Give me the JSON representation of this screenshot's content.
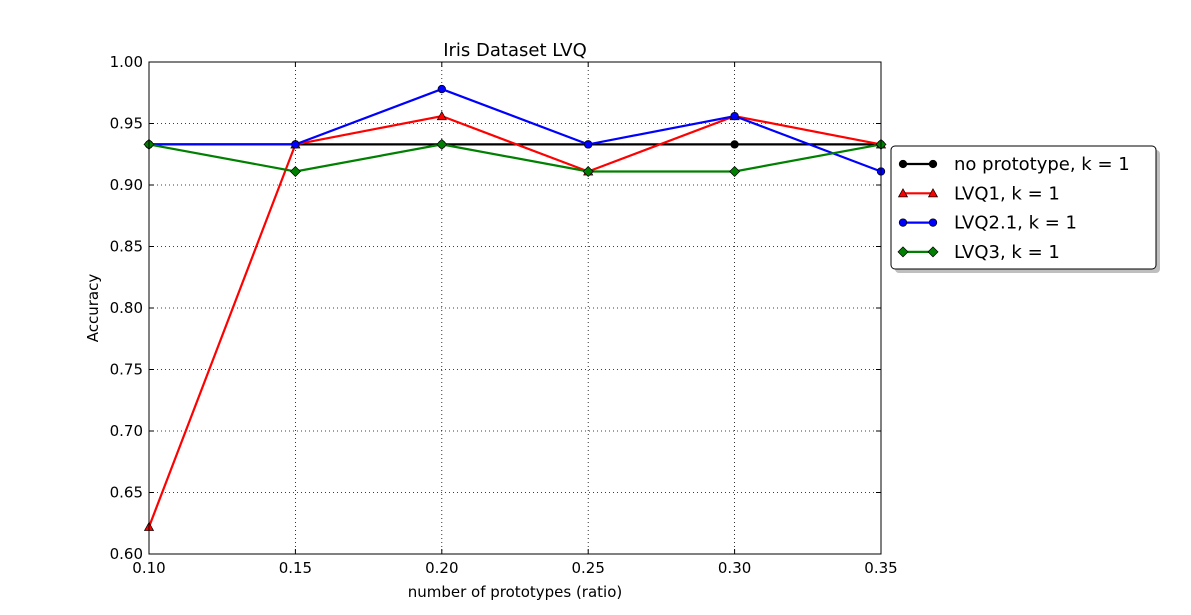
{
  "chart_data": {
    "type": "line",
    "title": "Iris Dataset LVQ",
    "xlabel": "number of prototypes (ratio)",
    "ylabel": "Accuracy",
    "xlim": [
      0.1,
      0.35
    ],
    "ylim": [
      0.6,
      1.0
    ],
    "xticks": [
      "0.10",
      "0.15",
      "0.20",
      "0.25",
      "0.30",
      "0.35"
    ],
    "yticks": [
      "0.60",
      "0.65",
      "0.70",
      "0.75",
      "0.80",
      "0.85",
      "0.90",
      "0.95",
      "1.00"
    ],
    "grid": true,
    "legend_position": "outside-right",
    "x": [
      0.1,
      0.15,
      0.2,
      0.25,
      0.3,
      0.35
    ],
    "series": [
      {
        "name": "no prototype, k = 1",
        "color": "#000000",
        "marker": "circle",
        "values": [
          0.933,
          0.933,
          0.933,
          0.933,
          0.933,
          0.933
        ]
      },
      {
        "name": "LVQ1, k = 1",
        "color": "#ff0000",
        "marker": "triangle",
        "values": [
          0.622,
          0.933,
          0.956,
          0.911,
          0.956,
          0.933
        ]
      },
      {
        "name": "LVQ2.1, k = 1",
        "color": "#0000ff",
        "marker": "circle",
        "values": [
          0.933,
          0.933,
          0.978,
          0.933,
          0.956,
          0.911
        ]
      },
      {
        "name": "LVQ3, k = 1",
        "color": "#008000",
        "marker": "diamond",
        "values": [
          0.933,
          0.911,
          0.933,
          0.911,
          0.911,
          0.933
        ]
      }
    ]
  }
}
